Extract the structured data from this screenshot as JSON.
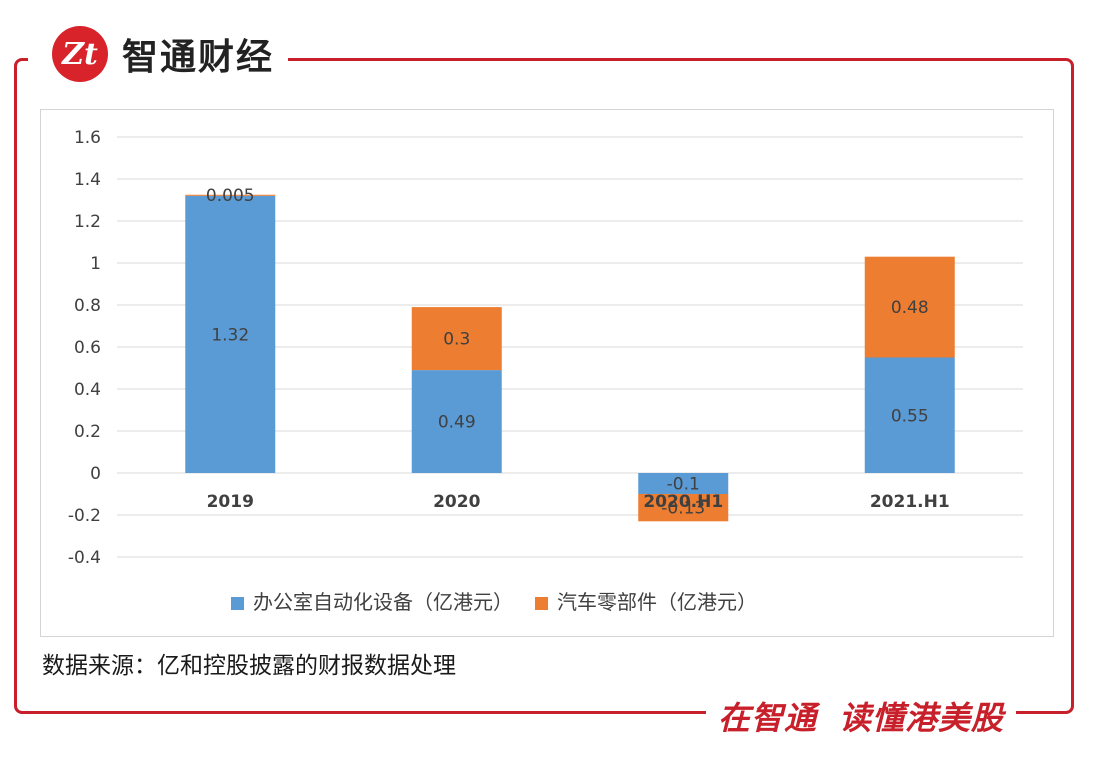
{
  "brand": {
    "logo_text": "Zt",
    "name": "智通财经"
  },
  "chart_data": {
    "type": "bar",
    "stacked": true,
    "categories": [
      "2019",
      "2020",
      "2020.H1",
      "2021.H1"
    ],
    "series": [
      {
        "name": "办公室自动化设备（亿港元）",
        "color": "#5b9bd5",
        "values": [
          1.32,
          0.49,
          -0.1,
          0.55
        ],
        "labels": [
          "1.32",
          "0.49",
          "-0.1",
          "0.55"
        ]
      },
      {
        "name": "汽车零部件（亿港元）",
        "color": "#ed7d31",
        "values": [
          0.005,
          0.3,
          -0.13,
          0.48
        ],
        "labels": [
          "0.005",
          "0.3",
          "-0.13",
          "0.48"
        ]
      }
    ],
    "ylim": [
      -0.4,
      1.6
    ],
    "yticks": [
      1.6,
      1.4,
      1.2,
      1,
      0.8,
      0.6,
      0.4,
      0.2,
      0,
      -0.2,
      -0.4
    ],
    "ytick_labels": [
      "1.6",
      "1.4",
      "1.2",
      "1",
      "0.8",
      "0.6",
      "0.4",
      "0.2",
      "0",
      "-0.2",
      "-0.4"
    ],
    "title": "",
    "xlabel": "",
    "ylabel": "",
    "grid": true,
    "legend_position": "bottom"
  },
  "source": "数据来源：亿和控股披露的财报数据处理",
  "slogan": {
    "part1": "在智通",
    "part2": "读懂港美股"
  }
}
